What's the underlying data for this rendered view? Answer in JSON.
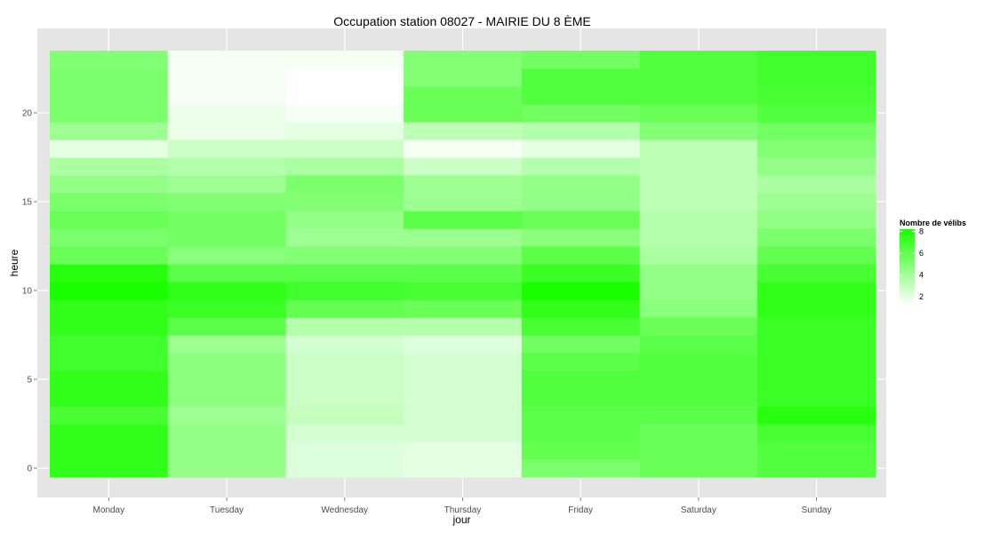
{
  "chart_data": {
    "type": "heatmap",
    "title": "Occupation station 08027 - MAIRIE DU 8 ÈME",
    "xlabel": "jour",
    "ylabel": "heure",
    "x_categories": [
      "Monday",
      "Tuesday",
      "Wednesday",
      "Thursday",
      "Friday",
      "Saturday",
      "Sunday"
    ],
    "y_hours": [
      0,
      1,
      2,
      3,
      4,
      5,
      6,
      7,
      8,
      9,
      10,
      11,
      12,
      13,
      14,
      15,
      16,
      17,
      18,
      19,
      20,
      21,
      22,
      23
    ],
    "y_ticks": [
      0,
      5,
      10,
      15,
      20
    ],
    "ylim": [
      -0.5,
      23.5
    ],
    "grid": true,
    "legend": {
      "title": "Nombre de vélibs",
      "placement": "right",
      "ticks": [
        2,
        4,
        6,
        8
      ],
      "range": [
        1.2,
        8.2
      ],
      "color_low": "#ffffff",
      "color_high": "#1aff00"
    },
    "values": {
      "Monday": [
        7.5,
        7.5,
        7.5,
        6.8,
        7.5,
        7.5,
        7.0,
        7.0,
        7.5,
        7.5,
        8.2,
        7.8,
        5.8,
        5.2,
        5.8,
        5.2,
        4.5,
        3.8,
        2.0,
        4.2,
        5.2,
        5.2,
        5.2,
        5.0
      ],
      "Tuesday": [
        4.5,
        4.5,
        4.5,
        4.2,
        4.7,
        4.7,
        4.7,
        4.2,
        6.2,
        7.2,
        7.5,
        6.2,
        4.8,
        5.5,
        5.5,
        5.0,
        4.2,
        3.5,
        2.8,
        1.8,
        1.8,
        1.5,
        1.5,
        1.5
      ],
      "Wednesday": [
        2.2,
        2.2,
        2.5,
        3.0,
        2.8,
        2.8,
        2.8,
        2.5,
        3.5,
        6.0,
        7.0,
        6.2,
        5.0,
        4.2,
        4.5,
        5.0,
        5.2,
        3.8,
        2.8,
        2.0,
        1.5,
        1.2,
        1.2,
        1.5
      ],
      "Thursday": [
        2.0,
        2.0,
        2.5,
        2.5,
        2.5,
        2.5,
        2.5,
        2.2,
        3.5,
        5.8,
        6.8,
        6.2,
        5.0,
        4.3,
        6.2,
        4.2,
        4.2,
        2.8,
        1.5,
        3.2,
        5.8,
        5.8,
        5.0,
        5.0
      ],
      "Friday": [
        5.2,
        6.0,
        6.2,
        6.2,
        6.5,
        6.5,
        6.2,
        5.5,
        6.8,
        7.5,
        8.2,
        7.2,
        6.2,
        4.8,
        5.8,
        4.6,
        4.5,
        3.5,
        2.0,
        3.5,
        5.5,
        6.5,
        6.5,
        5.5
      ],
      "Saturday": [
        5.8,
        5.8,
        5.8,
        6.2,
        6.5,
        6.5,
        6.5,
        6.2,
        5.8,
        4.8,
        4.5,
        4.5,
        3.8,
        3.5,
        3.5,
        3.2,
        3.2,
        3.2,
        3.2,
        5.0,
        5.8,
        6.5,
        6.5,
        6.5
      ],
      "Sunday": [
        6.5,
        6.5,
        6.8,
        7.8,
        7.2,
        7.2,
        7.2,
        7.2,
        7.2,
        7.5,
        7.5,
        6.8,
        6.0,
        5.2,
        4.6,
        4.2,
        3.8,
        4.5,
        5.0,
        5.5,
        6.5,
        6.8,
        7.0,
        7.0
      ]
    }
  }
}
